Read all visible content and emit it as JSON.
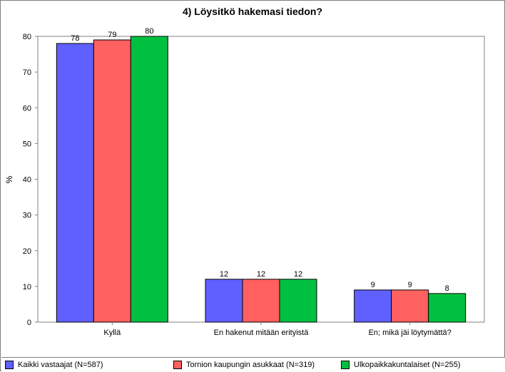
{
  "chart_data": {
    "type": "bar",
    "title": "4) Löysitkö hakemasi tiedon?",
    "xlabel": "",
    "ylabel": "%",
    "ylim": [
      0,
      80
    ],
    "yticks": [
      0,
      10,
      20,
      30,
      40,
      50,
      60,
      70,
      80
    ],
    "grid": false,
    "legend_position": "bottom",
    "categories": [
      "Kyllä",
      "En hakenut mitään erityistä",
      "En; mikä jäi löytymättä?"
    ],
    "series": [
      {
        "name": "Kaikki vastaajat (N=587)",
        "color": "#6060ff",
        "values": [
          78,
          12,
          9
        ]
      },
      {
        "name": "Tornion kaupungin asukkaat (N=319)",
        "color": "#ff6060",
        "values": [
          79,
          12,
          9
        ]
      },
      {
        "name": "Ulkopaikkakuntalaiset (N=255)",
        "color": "#00c040",
        "values": [
          80,
          12,
          8
        ]
      }
    ]
  }
}
